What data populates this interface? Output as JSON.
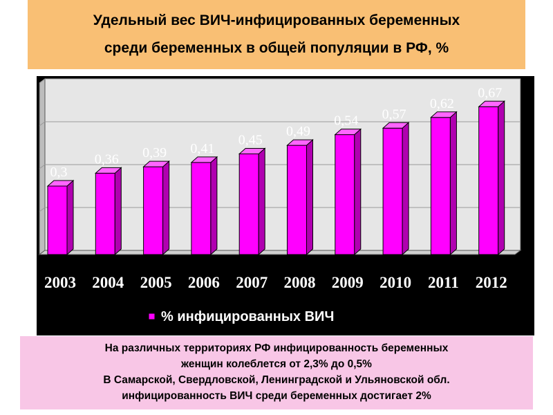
{
  "header": {
    "title_line1": "Удельный вес ВИЧ-инфицированных беременных",
    "title_line2": "среди беременных в общей популяции в РФ, %"
  },
  "chart_data": {
    "type": "bar",
    "categories": [
      "2003",
      "2004",
      "2005",
      "2006",
      "2007",
      "2008",
      "2009",
      "2010",
      "2011",
      "2012"
    ],
    "value_labels": [
      "0,3",
      "0,36",
      "0,39",
      "0,41",
      "0,45",
      "0,49",
      "0,54",
      "0,57",
      "0,62",
      "0,67"
    ],
    "series": [
      {
        "name": "% инфицированных ВИЧ",
        "values": [
          0.3,
          0.36,
          0.39,
          0.41,
          0.45,
          0.49,
          0.54,
          0.57,
          0.62,
          0.67
        ]
      }
    ],
    "ylim": [
      0,
      0.8
    ],
    "grid": true,
    "legend": "bottom",
    "colors": {
      "bar": "#ff00ff",
      "background": "#000000",
      "plot_area": "#e6e6e6",
      "gridline": "#999999"
    }
  },
  "footnote": {
    "line1": "На различных территориях РФ инфицированность беременных",
    "line2": "женщин колеблется от 2,3% до 0,5%",
    "line3": "В Самарской, Свердловской, Ленинградской и Ульяновской обл.",
    "line4": "инфицированность ВИЧ среди беременных достигает 2%"
  }
}
